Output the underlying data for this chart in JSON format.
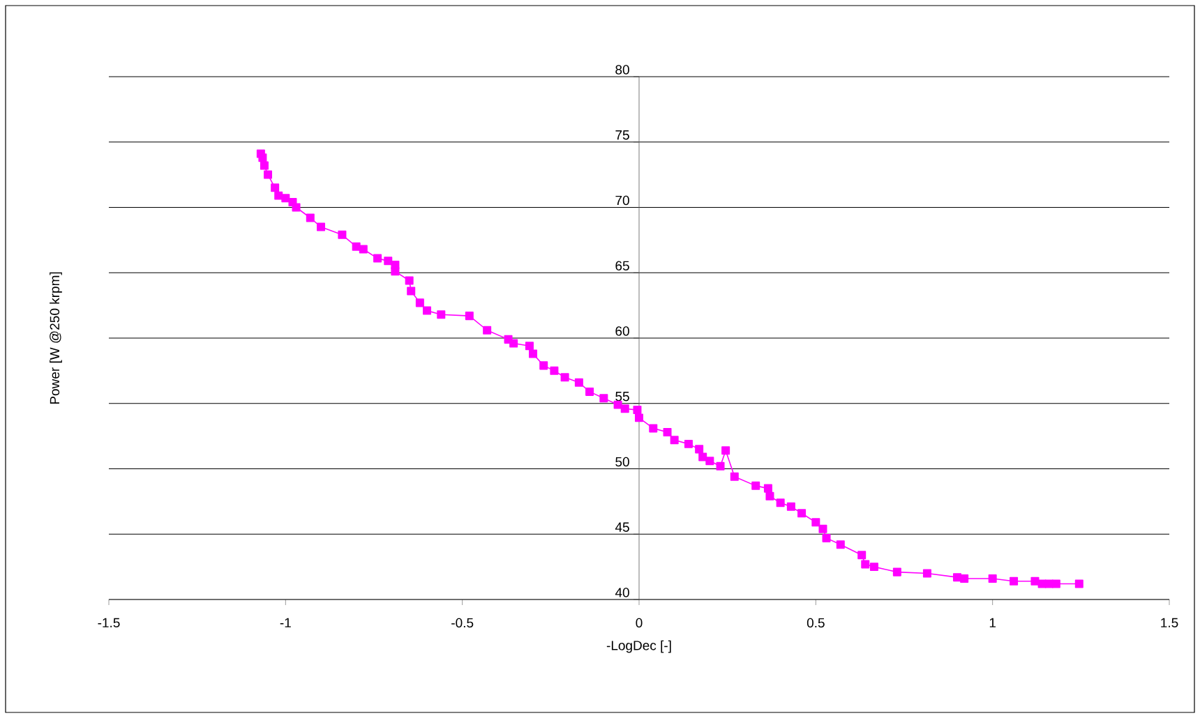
{
  "chart_data": {
    "type": "line",
    "xlabel": "-LogDec [-]",
    "ylabel": "Power [W @250 krpm]",
    "xlim": [
      -1.5,
      1.5
    ],
    "xticks": [
      -1.5,
      -1,
      -0.5,
      0,
      0.5,
      1,
      1.5
    ],
    "ylim": [
      40,
      80
    ],
    "yticks": [
      40,
      45,
      50,
      55,
      60,
      65,
      70,
      75,
      80
    ],
    "grid": "y",
    "marker": "square",
    "line_style": "solid",
    "series": [
      {
        "color": "#ff00ff",
        "x": [
          -1.07,
          -1.065,
          -1.06,
          -1.05,
          -1.03,
          -1.02,
          -1.0,
          -0.98,
          -0.97,
          -0.93,
          -0.9,
          -0.84,
          -0.8,
          -0.78,
          -0.74,
          -0.71,
          -0.69,
          -0.69,
          -0.65,
          -0.645,
          -0.62,
          -0.6,
          -0.56,
          -0.48,
          -0.43,
          -0.37,
          -0.355,
          -0.31,
          -0.3,
          -0.27,
          -0.24,
          -0.21,
          -0.17,
          -0.14,
          -0.1,
          -0.06,
          -0.04,
          -0.005,
          0,
          0.04,
          0.08,
          0.1,
          0.14,
          0.17,
          0.18,
          0.2,
          0.23,
          0.245,
          0.27,
          0.33,
          0.365,
          0.37,
          0.4,
          0.43,
          0.46,
          0.5,
          0.52,
          0.53,
          0.57,
          0.63,
          0.64,
          0.665,
          0.73,
          0.815,
          0.9,
          0.92,
          1.0,
          1.06,
          1.12,
          1.14,
          1.16,
          1.18,
          1.245
        ],
        "values": [
          74.1,
          73.8,
          73.2,
          72.5,
          71.5,
          70.9,
          70.7,
          70.4,
          70.0,
          69.2,
          68.5,
          67.9,
          67.0,
          66.8,
          66.1,
          65.9,
          65.6,
          65.1,
          64.4,
          63.6,
          62.7,
          62.1,
          61.8,
          61.7,
          60.6,
          59.9,
          59.6,
          59.4,
          58.8,
          57.9,
          57.5,
          57.0,
          56.6,
          55.9,
          55.4,
          54.9,
          54.6,
          54.5,
          53.9,
          53.1,
          52.8,
          52.2,
          51.9,
          51.5,
          50.9,
          50.6,
          50.2,
          51.4,
          49.4,
          48.7,
          48.5,
          47.9,
          47.4,
          47.1,
          46.6,
          45.9,
          45.4,
          44.7,
          44.2,
          43.4,
          42.7,
          42.5,
          42.1,
          42.0,
          41.7,
          41.6,
          41.6,
          41.4,
          41.4,
          41.2,
          41.2,
          41.2,
          41.2
        ]
      }
    ]
  }
}
